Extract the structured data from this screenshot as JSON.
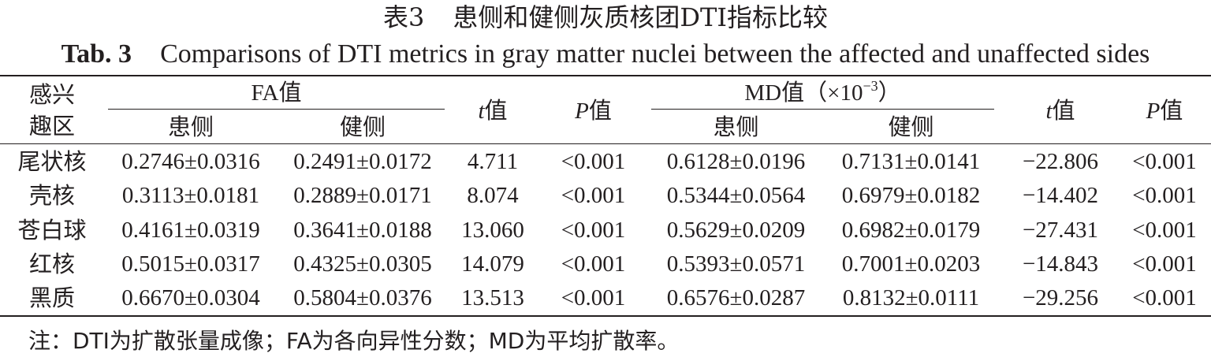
{
  "caption": {
    "cn_label": "表3",
    "cn_title": "患侧和健侧灰质核团DTI指标比较",
    "en_label": "Tab. 3",
    "en_title": "Comparisons of DTI metrics in gray matter nuclei between the affected and unaffected sides"
  },
  "header": {
    "roi_line1": "感兴",
    "roi_line2": "趣区",
    "fa_group": "FA值",
    "md_group_main": "MD值（×10",
    "md_group_exp": "−3",
    "md_group_close": "）",
    "affected": "患侧",
    "unaffected": "健侧",
    "t_symbol": "t",
    "t_suffix": "值",
    "p_symbol": "P",
    "p_suffix": "值"
  },
  "rows": [
    {
      "region": "尾状核",
      "fa_affected": "0.2746±0.0316",
      "fa_unaffected": "0.2491±0.0172",
      "fa_t": "4.711",
      "fa_p": "<0.001",
      "md_affected": "0.6128±0.0196",
      "md_unaffected": "0.7131±0.0141",
      "md_t": "−22.806",
      "md_p": "<0.001"
    },
    {
      "region": "壳核",
      "fa_affected": "0.3113±0.0181",
      "fa_unaffected": "0.2889±0.0171",
      "fa_t": "8.074",
      "fa_p": "<0.001",
      "md_affected": "0.5344±0.0564",
      "md_unaffected": "0.6979±0.0182",
      "md_t": "−14.402",
      "md_p": "<0.001"
    },
    {
      "region": "苍白球",
      "fa_affected": "0.4161±0.0319",
      "fa_unaffected": "0.3641±0.0188",
      "fa_t": "13.060",
      "fa_p": "<0.001",
      "md_affected": "0.5629±0.0209",
      "md_unaffected": "0.6982±0.0179",
      "md_t": "−27.431",
      "md_p": "<0.001"
    },
    {
      "region": "红核",
      "fa_affected": "0.5015±0.0317",
      "fa_unaffected": "0.4325±0.0305",
      "fa_t": "14.079",
      "fa_p": "<0.001",
      "md_affected": "0.5393±0.0571",
      "md_unaffected": "0.7001±0.0203",
      "md_t": "−14.843",
      "md_p": "<0.001"
    },
    {
      "region": "黑质",
      "fa_affected": "0.6670±0.0304",
      "fa_unaffected": "0.5804±0.0376",
      "fa_t": "13.513",
      "fa_p": "<0.001",
      "md_affected": "0.6576±0.0287",
      "md_unaffected": "0.8132±0.0111",
      "md_t": "−29.256",
      "md_p": "<0.001"
    }
  ],
  "note": "注：DTI为扩散张量成像；FA为各向异性分数；MD为平均扩散率。"
}
